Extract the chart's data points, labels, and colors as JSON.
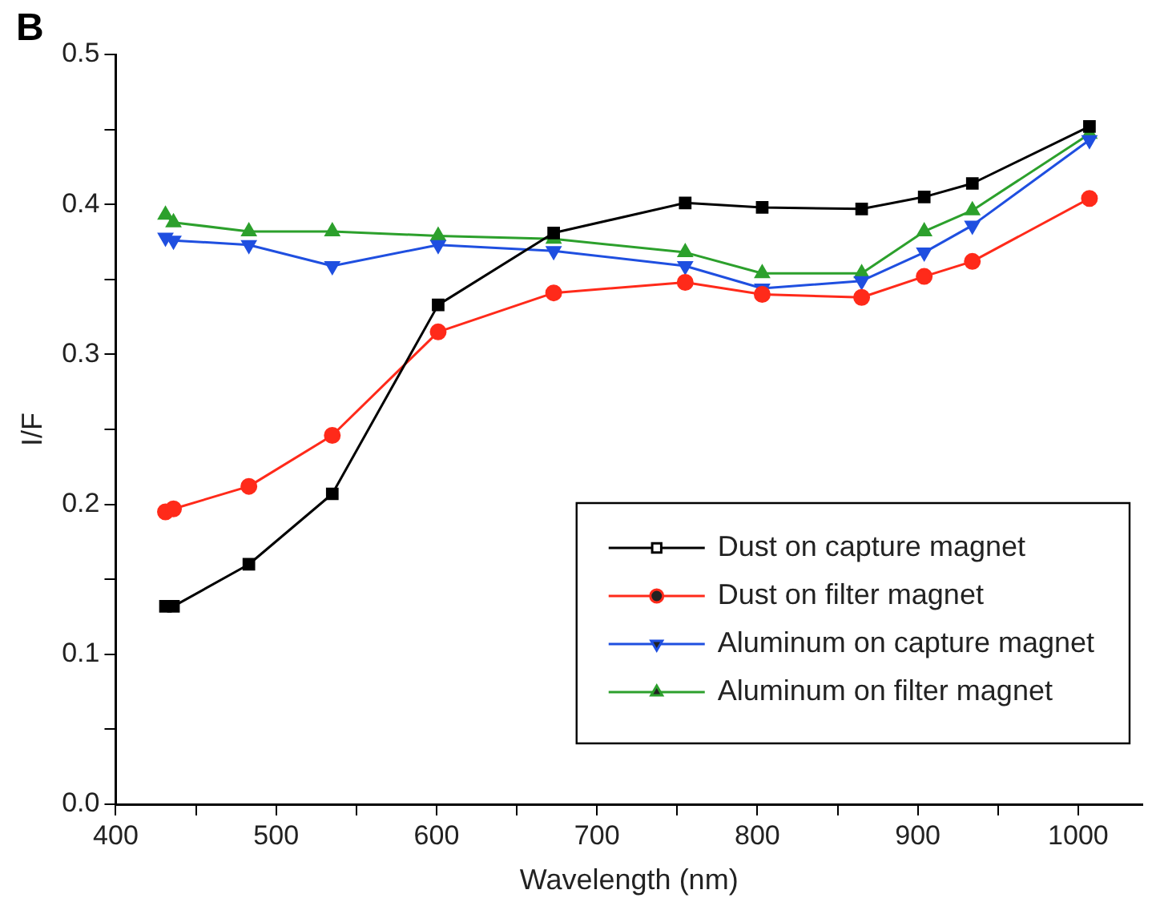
{
  "chart_data": {
    "type": "line",
    "xlabel": "Wavelength (nm)",
    "ylabel": "I/F",
    "annotations": [
      "B"
    ],
    "x": [
      431,
      436,
      483,
      535,
      601,
      673,
      755,
      803,
      865,
      904,
      934,
      1007
    ],
    "series": [
      {
        "name": "Dust on capture magnet",
        "color": "#000000",
        "marker": "square",
        "values": [
          0.132,
          0.132,
          0.16,
          0.207,
          0.333,
          0.381,
          0.401,
          0.398,
          0.397,
          0.405,
          0.414,
          0.452
        ]
      },
      {
        "name": "Dust on filter magnet",
        "color": "#ff2a1a",
        "marker": "circle",
        "values": [
          0.195,
          0.197,
          0.212,
          0.246,
          0.315,
          0.341,
          0.348,
          0.34,
          0.338,
          0.352,
          0.362,
          0.404
        ]
      },
      {
        "name": "Aluminum on capture magnet",
        "color": "#1f4fe0",
        "marker": "triangle-down",
        "values": [
          0.378,
          0.376,
          0.373,
          0.359,
          0.373,
          0.369,
          0.359,
          0.344,
          0.349,
          0.368,
          0.386,
          0.443
        ]
      },
      {
        "name": "Aluminum on filter magnet",
        "color": "#2ca02c",
        "marker": "triangle",
        "values": [
          0.393,
          0.388,
          0.382,
          0.382,
          0.379,
          0.377,
          0.368,
          0.354,
          0.354,
          0.382,
          0.396,
          0.447
        ]
      }
    ],
    "xlim": [
      400,
      1040
    ],
    "ylim": [
      0,
      0.5
    ],
    "xticks": [
      400,
      {
        "value": 450,
        "label": null
      },
      500,
      {
        "value": 550,
        "label": null
      },
      600,
      {
        "value": 650,
        "label": null
      },
      700,
      {
        "value": 750,
        "label": null
      },
      800,
      {
        "value": 850,
        "label": null
      },
      900,
      {
        "value": 950,
        "label": null
      },
      1000
    ],
    "yticks": [
      {
        "value": 0,
        "label": "0.0"
      },
      {
        "value": 0.05,
        "label": null
      },
      0.1,
      {
        "value": 0.15,
        "label": null
      },
      0.2,
      {
        "value": 0.25,
        "label": null
      },
      0.3,
      {
        "value": 0.35,
        "label": null
      },
      0.4,
      {
        "value": 0.45,
        "label": null
      },
      0.5
    ],
    "grid": false,
    "legend": "bottom right",
    "line_style": "solid"
  }
}
